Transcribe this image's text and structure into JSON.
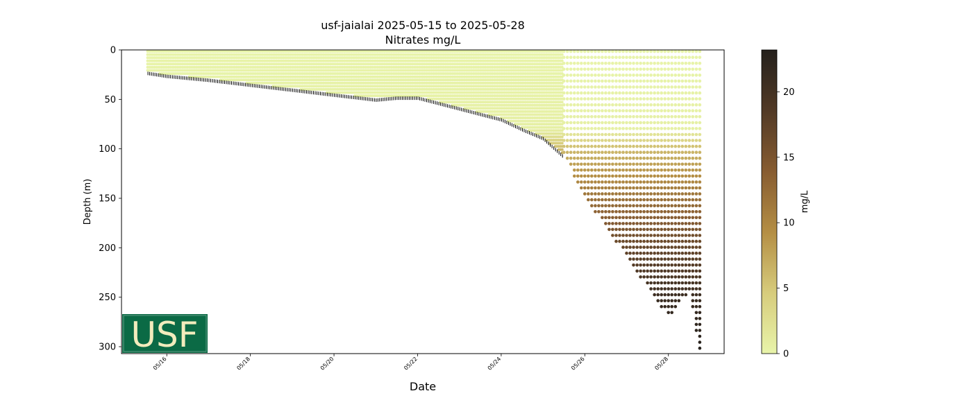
{
  "chart_data": {
    "type": "scatter",
    "title": "usf-jaialai 2025-05-15 to 2025-05-28",
    "subtitle": "Nitrates mg/L",
    "xlabel": "Date",
    "ylabel": "Depth (m)",
    "colorbar_label": "mg/L",
    "xlim": [
      "2025-05-14 22:00",
      "2025-05-29 08:00"
    ],
    "ylim": [
      307,
      0
    ],
    "y_inverted": true,
    "x_ticks": [
      {
        "date": "2025-05-16",
        "label": "05/16"
      },
      {
        "date": "2025-05-18",
        "label": "05/18"
      },
      {
        "date": "2025-05-20",
        "label": "05/20"
      },
      {
        "date": "2025-05-22",
        "label": "05/22"
      },
      {
        "date": "2025-05-24",
        "label": "05/24"
      },
      {
        "date": "2025-05-26",
        "label": "05/26"
      },
      {
        "date": "2025-05-28",
        "label": "05/28"
      }
    ],
    "y_ticks": [
      0,
      50,
      100,
      150,
      200,
      250,
      300
    ],
    "colorbar": {
      "range": [
        0,
        23.2
      ],
      "ticks": [
        0,
        5,
        10,
        15,
        20
      ],
      "colors": [
        "#e8f4aa",
        "#d7cc7c",
        "#b48e44",
        "#875c31",
        "#523a26",
        "#24201c"
      ]
    },
    "grid": false,
    "profile_bottom": [
      {
        "date": "2025-05-15 13:00",
        "depth": 22
      },
      {
        "date": "2025-05-16 00:00",
        "depth": 25
      },
      {
        "date": "2025-05-17 00:00",
        "depth": 29
      },
      {
        "date": "2025-05-18 00:00",
        "depth": 34
      },
      {
        "date": "2025-05-19 00:00",
        "depth": 39
      },
      {
        "date": "2025-05-20 00:00",
        "depth": 44
      },
      {
        "date": "2025-05-21 00:00",
        "depth": 49
      },
      {
        "date": "2025-05-21 12:00",
        "depth": 47
      },
      {
        "date": "2025-05-22 00:00",
        "depth": 47
      },
      {
        "date": "2025-05-23 00:00",
        "depth": 58
      },
      {
        "date": "2025-05-24 00:00",
        "depth": 69
      },
      {
        "date": "2025-05-24 12:00",
        "depth": 79
      },
      {
        "date": "2025-05-25 00:00",
        "depth": 88
      },
      {
        "date": "2025-05-25 12:00",
        "depth": 107
      },
      {
        "date": "2025-05-26 00:00",
        "depth": 150
      },
      {
        "date": "2025-05-26 12:00",
        "depth": 178
      },
      {
        "date": "2025-05-27 00:00",
        "depth": 210
      },
      {
        "date": "2025-05-27 12:00",
        "depth": 240
      },
      {
        "date": "2025-05-28 00:00",
        "depth": 270
      },
      {
        "date": "2025-05-28 12:00",
        "depth": 245
      },
      {
        "date": "2025-05-28 18:00",
        "depth": 305
      }
    ],
    "nitrate_profile_stages": [
      {
        "depth": 0,
        "value": 0
      },
      {
        "depth": 80,
        "value": 0.5
      },
      {
        "depth": 100,
        "value": 6
      },
      {
        "depth": 150,
        "value": 12
      },
      {
        "depth": 200,
        "value": 17
      },
      {
        "depth": 250,
        "value": 21
      },
      {
        "depth": 305,
        "value": 23
      }
    ],
    "samples_start": "2025-05-15 13:00",
    "samples_end": "2025-05-28 18:00"
  },
  "logo": {
    "text": "USF",
    "bg_color": "#0b6a45",
    "text_color": "#f2ecbd"
  }
}
